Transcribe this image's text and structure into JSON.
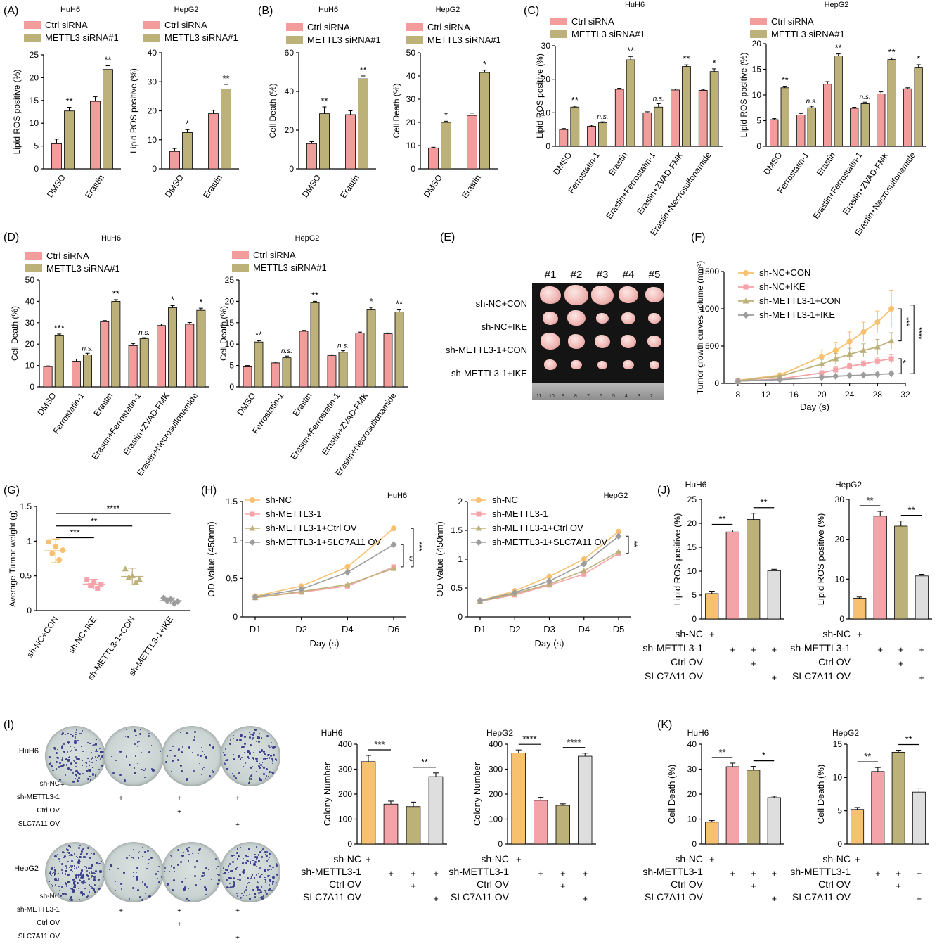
{
  "colors": {
    "ctrl": "#f39c9c",
    "si": "#bdb17a",
    "orange": "#f8c170",
    "pink": "#f4a3a8",
    "olive": "#bdb17a",
    "grey": "#dedede",
    "gray": "#9d9d9d",
    "ink": "#000000"
  },
  "legend_ctrl": "Ctrl siRNA",
  "legend_si": "METTL3 siRNA#1",
  "cells": {
    "huh6": "HuH6",
    "hepg2": "HepG2"
  },
  "panel_labels": [
    "(A)",
    "(B)",
    "(C)",
    "(D)",
    "(E)",
    "(F)",
    "(G)",
    "(H)",
    "(I)",
    "(J)",
    "(K)"
  ],
  "row_labels": {
    "sh_nc": "sh-NC",
    "sh_m": "sh-METTL3-1",
    "ctrl_ov": "Ctrl OV",
    "slc": "SLC7A11 OV",
    "plus": "+"
  },
  "panel_e": {
    "columns": [
      "#1",
      "#2",
      "#3",
      "#4",
      "#5"
    ],
    "rows": [
      "sh-NC+CON",
      "sh-NC+IKE",
      "sh-METTL3-1+CON",
      "sh-METTL3-1+IKE"
    ],
    "ruler_ticks": [
      "11",
      "10",
      "9",
      "8",
      "7",
      "6",
      "5",
      "4",
      "3",
      "2"
    ]
  },
  "panel_i_cells": [
    "HuH6",
    "HepG2"
  ],
  "chart_data": [
    {
      "id": "A1",
      "type": "bar",
      "title": "HuH6",
      "ylabel": "Lipid ROS positive (%)",
      "ylim": [
        0,
        25
      ],
      "yticks": [
        0,
        5,
        10,
        15,
        20,
        25
      ],
      "categories": [
        "DMSO",
        "Erastin"
      ],
      "series": [
        {
          "name": "Ctrl siRNA",
          "values": [
            5.5,
            14.8
          ],
          "err": [
            1,
            1
          ]
        },
        {
          "name": "METTL3 siRNA#1",
          "values": [
            12.7,
            21.8
          ],
          "err": [
            0.8,
            0.8
          ]
        }
      ],
      "sig": [
        "**",
        "**"
      ]
    },
    {
      "id": "A2",
      "type": "bar",
      "title": "HepG2",
      "ylabel": "Lipid ROS positive (%)",
      "ylim": [
        0,
        40
      ],
      "yticks": [
        0,
        10,
        20,
        30,
        40
      ],
      "categories": [
        "DMSO",
        "Erastin"
      ],
      "series": [
        {
          "name": "Ctrl siRNA",
          "values": [
            6,
            19
          ],
          "err": [
            1,
            1.2
          ]
        },
        {
          "name": "METTL3 siRNA#1",
          "values": [
            12.5,
            27.5
          ],
          "err": [
            1,
            1.6
          ]
        }
      ],
      "sig": [
        "*",
        "**"
      ]
    },
    {
      "id": "B1",
      "type": "bar",
      "title": "HuH6",
      "ylabel": "Cell  Death (%)",
      "ylim": [
        0,
        60
      ],
      "yticks": [
        0,
        20,
        40,
        60
      ],
      "categories": [
        "DMSO",
        "Erastin"
      ],
      "series": [
        {
          "name": "Ctrl siRNA",
          "values": [
            13,
            28
          ],
          "err": [
            1,
            2
          ]
        },
        {
          "name": "METTL3 siRNA#1",
          "values": [
            28.5,
            46.5
          ],
          "err": [
            3.5,
            1.5
          ]
        }
      ],
      "sig": [
        "**",
        "**"
      ]
    },
    {
      "id": "B2",
      "type": "bar",
      "title": "HepG2",
      "ylabel": "Cell Death (%)",
      "ylim": [
        0,
        50
      ],
      "yticks": [
        0,
        10,
        20,
        30,
        40,
        50
      ],
      "categories": [
        "DMSO",
        "Erastin"
      ],
      "series": [
        {
          "name": "Ctrl siRNA",
          "values": [
            9,
            23
          ],
          "err": [
            0.3,
            1
          ]
        },
        {
          "name": "METTL3 siRNA#1",
          "values": [
            20,
            41.5
          ],
          "err": [
            0.5,
            1
          ]
        }
      ],
      "sig": [
        "*",
        "*"
      ]
    },
    {
      "id": "C1",
      "type": "bar",
      "title": "HuH6",
      "ylabel": "Lipid ROS positive (%)",
      "ylim": [
        0,
        30
      ],
      "yticks": [
        0,
        10,
        20,
        30
      ],
      "categories": [
        "DMSO",
        "Ferrostatin-1",
        "Erastin",
        "Erastin+Ferrostatin-1",
        "Erastin+ZVAD-FMK",
        "Erastin+Necrosulfonamide"
      ],
      "series": [
        {
          "name": "Ctrl siRNA",
          "values": [
            5,
            6,
            17,
            10,
            16.8,
            16.7
          ],
          "err": [
            0.3,
            0.3,
            0.3,
            0.3,
            0.3,
            0.3
          ]
        },
        {
          "name": "METTL3 siRNA#1",
          "values": [
            11.7,
            7,
            25.8,
            11.7,
            23.8,
            22.3
          ],
          "err": [
            0.3,
            0.3,
            1,
            1,
            0.5,
            0.8
          ]
        }
      ],
      "sig": [
        "**",
        "n.s.",
        "**",
        "n.s.",
        "**",
        "*"
      ]
    },
    {
      "id": "C2",
      "type": "bar",
      "title": "HepG2",
      "ylabel": "Lipid ROS positive (%)",
      "ylim": [
        0,
        20
      ],
      "yticks": [
        0,
        5,
        10,
        15,
        20
      ],
      "categories": [
        "DMSO",
        "Ferrostatin-1",
        "Erastin",
        "Erastin+Ferrostatin-1",
        "Erastin+ZVAD-FMK",
        "Erastin+Necrosulfonamide"
      ],
      "series": [
        {
          "name": "Ctrl siRNA",
          "values": [
            5.2,
            6.1,
            12.1,
            7.4,
            10.2,
            11.2
          ],
          "err": [
            0.2,
            0.3,
            0.5,
            0.2,
            0.4,
            0.2
          ]
        },
        {
          "name": "METTL3 siRNA#1",
          "values": [
            11.4,
            7.5,
            17.6,
            8.3,
            16.9,
            15.4
          ],
          "err": [
            0.3,
            0.3,
            0.4,
            0.3,
            0.3,
            0.5
          ]
        }
      ],
      "sig": [
        "**",
        "n.s.",
        "**",
        "n.s.",
        "**",
        "*"
      ]
    },
    {
      "id": "D1",
      "type": "bar",
      "title": "HuH6",
      "ylabel": "Cell  Death (%)",
      "ylim": [
        0,
        50
      ],
      "yticks": [
        0,
        10,
        20,
        30,
        40,
        50
      ],
      "categories": [
        "DMSO",
        "Ferrostatin-1",
        "Erastin",
        "Erastin+Ferrostatin-1",
        "Erastin+ZVAD-FMK",
        "Erastin+Necrosulfonamide"
      ],
      "series": [
        {
          "name": "Ctrl siRNA",
          "values": [
            9.5,
            12,
            30.5,
            19.3,
            28.7,
            29.3
          ],
          "err": [
            0.3,
            1,
            0.5,
            1,
            0.7,
            0.8
          ]
        },
        {
          "name": "METTL3 siRNA#1",
          "values": [
            24.2,
            15,
            40,
            22.5,
            37,
            35.8
          ],
          "err": [
            0.5,
            0.7,
            0.8,
            0.5,
            1,
            1
          ]
        }
      ],
      "sig": [
        "***",
        "n.s.",
        "**",
        "n.s.",
        "*",
        "*"
      ]
    },
    {
      "id": "D2",
      "type": "bar",
      "title": "HepG2",
      "ylabel": "Cell  Death (%)",
      "ylim": [
        0,
        25
      ],
      "yticks": [
        0,
        5,
        10,
        15,
        20,
        25
      ],
      "categories": [
        "DMSO",
        "Ferrostatin-1",
        "Erastin",
        "Erastin+Ferrostatin-1",
        "Erastin+ZVAD-FMK",
        "Erastin+Necrosulfonamide"
      ],
      "series": [
        {
          "name": "Ctrl siRNA",
          "values": [
            4.7,
            5.6,
            13,
            7.3,
            12.6,
            12.4
          ],
          "err": [
            0.3,
            0.2,
            0.2,
            0.2,
            0.2,
            0.2
          ]
        },
        {
          "name": "METTL3 siRNA#1",
          "values": [
            10.5,
            6.8,
            19.7,
            8.1,
            18,
            17.5
          ],
          "err": [
            0.3,
            0.4,
            0.3,
            0.4,
            0.6,
            0.5
          ]
        }
      ],
      "sig": [
        "**",
        "n.s.",
        "**",
        "n.s.",
        "*",
        "**"
      ]
    },
    {
      "id": "F",
      "type": "line",
      "xlabel": "Day (s)",
      "ylabel": "Tumor growth curves volume (mm³)",
      "xlim": [
        6,
        32
      ],
      "xticks": [
        8,
        12,
        16,
        20,
        24,
        28,
        32
      ],
      "ylim": [
        0,
        1500
      ],
      "yticks": [
        0,
        500,
        1000,
        1500
      ],
      "x": [
        8,
        14,
        20,
        22,
        24,
        26,
        28,
        30
      ],
      "series": [
        {
          "name": "sh-NC+CON",
          "values": [
            40,
            110,
            360,
            440,
            560,
            690,
            820,
            1000
          ],
          "err": [
            5,
            20,
            90,
            110,
            130,
            130,
            150,
            250
          ]
        },
        {
          "name": "sh-NC+IKE",
          "values": [
            30,
            60,
            140,
            180,
            230,
            260,
            300,
            330
          ],
          "err": [
            5,
            10,
            30,
            40,
            40,
            40,
            50,
            60
          ]
        },
        {
          "name": "sh-METTL3-1+CON",
          "values": [
            35,
            95,
            260,
            330,
            390,
            440,
            490,
            570
          ],
          "err": [
            5,
            15,
            60,
            70,
            80,
            90,
            100,
            110
          ]
        },
        {
          "name": "sh-METTL3-1+IKE",
          "values": [
            30,
            50,
            80,
            95,
            105,
            110,
            120,
            130
          ],
          "err": [
            5,
            10,
            20,
            20,
            20,
            25,
            25,
            30
          ]
        }
      ],
      "sig": [
        "***",
        "****",
        "*"
      ]
    },
    {
      "id": "G",
      "type": "scatter",
      "ylabel": "Average Tumor weight (g)",
      "ylim": [
        0,
        1.5
      ],
      "yticks": [
        0.0,
        0.5,
        1.0,
        1.5
      ],
      "categories": [
        "sh-NC+CON",
        "sh-NC+IKE",
        "sh-METTL3-1+CON",
        "sh-METTL3-1+IKE"
      ],
      "points": [
        [
          0.99,
          0.82,
          0.92,
          0.73,
          0.87
        ],
        [
          0.44,
          0.36,
          0.4,
          0.32,
          0.38
        ],
        [
          0.6,
          0.48,
          0.5,
          0.41,
          0.45
        ],
        [
          0.18,
          0.14,
          0.16,
          0.1,
          0.13
        ]
      ],
      "means": [
        0.86,
        0.38,
        0.49,
        0.14
      ],
      "sd": [
        0.17,
        0.07,
        0.12,
        0.04
      ],
      "sig": [
        "***",
        "**",
        "****"
      ]
    },
    {
      "id": "H1",
      "type": "line",
      "title": "HuH6",
      "xlabel": "Day (s)",
      "ylabel": "OD Value (450nm)",
      "categories": [
        "D1",
        "D2",
        "D4",
        "D6"
      ],
      "ylim": [
        0,
        1.5
      ],
      "yticks": [
        0.0,
        0.5,
        1.0,
        1.5
      ],
      "series": [
        {
          "name": "sh-NC",
          "values": [
            0.27,
            0.4,
            0.65,
            1.15
          ]
        },
        {
          "name": "sh-METTL3-1",
          "values": [
            0.25,
            0.32,
            0.4,
            0.65
          ]
        },
        {
          "name": "sh-METTL3-1+Ctrl OV",
          "values": [
            0.25,
            0.33,
            0.42,
            0.63
          ]
        },
        {
          "name": "sh-METTL3-1+SLC7A11 OV",
          "values": [
            0.26,
            0.36,
            0.58,
            0.94
          ]
        }
      ],
      "sig": [
        "**",
        "***"
      ]
    },
    {
      "id": "H2",
      "type": "line",
      "title": "HepG2",
      "xlabel": "Day (s)",
      "ylabel": "OD Value (450nm)",
      "categories": [
        "D1",
        "D2",
        "D3",
        "D4",
        "D5"
      ],
      "ylim": [
        0,
        2.0
      ],
      "yticks": [
        0.0,
        0.5,
        1.0,
        1.5,
        2.0
      ],
      "series": [
        {
          "name": "sh-NC",
          "values": [
            0.28,
            0.45,
            0.7,
            1.0,
            1.48
          ]
        },
        {
          "name": "sh-METTL3-1",
          "values": [
            0.27,
            0.38,
            0.55,
            0.74,
            1.1
          ]
        },
        {
          "name": "sh-METTL3-1+Ctrl OV",
          "values": [
            0.27,
            0.4,
            0.57,
            0.8,
            1.13
          ]
        },
        {
          "name": "sh-METTL3-1+SLC7A11 OV",
          "values": [
            0.28,
            0.42,
            0.62,
            0.92,
            1.4
          ]
        }
      ],
      "sig": [
        "**"
      ]
    },
    {
      "id": "J1",
      "type": "bar",
      "title": "HuH6",
      "ylabel": "Lipid ROS positive (%)",
      "ylim": [
        0,
        25
      ],
      "yticks": [
        0,
        5,
        10,
        15,
        20,
        25
      ],
      "values": [
        5.3,
        18.2,
        20.8,
        10.1
      ],
      "err": [
        0.5,
        0.4,
        1.3,
        0.3
      ],
      "sig": [
        "**",
        "**"
      ]
    },
    {
      "id": "J2",
      "type": "bar",
      "title": "HepG2",
      "ylabel": "Lipid ROS positive (%)",
      "ylim": [
        0,
        30
      ],
      "yticks": [
        0,
        10,
        20,
        30
      ],
      "values": [
        5.2,
        25.8,
        23.3,
        10.8
      ],
      "err": [
        0.3,
        1.2,
        1.3,
        0.4
      ],
      "sig": [
        "**",
        "**"
      ]
    },
    {
      "id": "I1",
      "type": "bar",
      "title": "HuH6",
      "ylabel": "Colony Number",
      "ylim": [
        0,
        400
      ],
      "yticks": [
        0,
        100,
        200,
        300,
        400
      ],
      "values": [
        330,
        160,
        150,
        270
      ],
      "err": [
        25,
        12,
        18,
        15
      ],
      "sig": [
        "***",
        "**"
      ]
    },
    {
      "id": "I2",
      "type": "bar",
      "title": "HepG2",
      "ylabel": "Colony Number",
      "ylim": [
        0,
        400
      ],
      "yticks": [
        0,
        100,
        200,
        300,
        400
      ],
      "values": [
        365,
        175,
        155,
        352
      ],
      "err": [
        12,
        12,
        6,
        12
      ],
      "sig": [
        "****",
        "****"
      ]
    },
    {
      "id": "K1",
      "type": "bar",
      "title": "HuH6",
      "ylabel": "Cell  Death (%)",
      "ylim": [
        0,
        40
      ],
      "yticks": [
        0,
        10,
        20,
        30,
        40
      ],
      "values": [
        8.8,
        31,
        29.6,
        18.6
      ],
      "err": [
        0.6,
        1.4,
        1.5,
        0.6
      ],
      "sig": [
        "**",
        "*"
      ]
    },
    {
      "id": "K2",
      "type": "bar",
      "title": "HepG2",
      "ylabel": "Cell  Death (%)",
      "ylim": [
        0,
        15
      ],
      "yticks": [
        0,
        5,
        10,
        15
      ],
      "values": [
        5.2,
        10.9,
        13.8,
        7.8
      ],
      "err": [
        0.3,
        0.6,
        0.3,
        0.5
      ],
      "sig": [
        "**",
        "**"
      ]
    }
  ]
}
